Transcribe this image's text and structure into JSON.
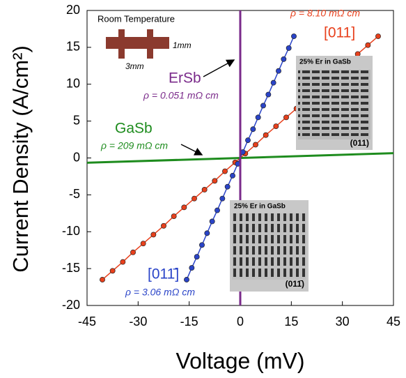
{
  "chart_data": {
    "type": "scatter",
    "x_label": "Voltage (mV)",
    "y_label": "Current Density (A/cm²)",
    "xlim": [
      -45,
      45
    ],
    "ylim": [
      -20,
      20
    ],
    "xticks": [
      -45,
      -30,
      -15,
      0,
      15,
      30,
      45
    ],
    "yticks": [
      -20,
      -15,
      -10,
      -5,
      0,
      5,
      10,
      15,
      20
    ],
    "series": [
      {
        "name": "[011]",
        "color": "#e8401c",
        "marker": true,
        "x": [
          -40.5,
          -37.5,
          -34.5,
          -31.5,
          -28.5,
          -25.5,
          -22.5,
          -19.5,
          -16.5,
          -13.5,
          -10.5,
          -7.5,
          -4.5,
          -1.5,
          1.5,
          4.5,
          7.5,
          10.5,
          13.5,
          16.5,
          19.5,
          22.5,
          25.5,
          28.5,
          31.5,
          34.5,
          37.5,
          40.5
        ],
        "values": [
          -16.5,
          -15.3,
          -14.1,
          -12.8,
          -11.6,
          -10.4,
          -9.2,
          -7.9,
          -6.7,
          -5.5,
          -4.3,
          -3.1,
          -1.8,
          -0.6,
          0.6,
          1.8,
          3.1,
          4.3,
          5.5,
          6.7,
          7.9,
          9.2,
          10.4,
          11.6,
          12.8,
          14.1,
          15.3,
          16.5
        ]
      },
      {
        "name": "[011̄]",
        "color": "#2a44c8",
        "marker": true,
        "x": [
          -15.75,
          -14.25,
          -12.75,
          -11.25,
          -9.75,
          -8.25,
          -6.75,
          -5.25,
          -3.75,
          -2.25,
          -0.75,
          0.75,
          2.25,
          3.75,
          5.25,
          6.75,
          8.25,
          9.75,
          11.25,
          12.75,
          14.25,
          15.75
        ],
        "values": [
          -16.5,
          -14.9,
          -13.4,
          -11.8,
          -10.2,
          -8.6,
          -7.1,
          -5.5,
          -3.9,
          -2.4,
          -0.8,
          0.8,
          2.4,
          3.9,
          5.5,
          7.1,
          8.6,
          10.2,
          11.8,
          13.4,
          14.9,
          16.5
        ]
      },
      {
        "name": "GaSb",
        "color": "#1e8c1e",
        "marker": false,
        "x": [
          -45,
          45
        ],
        "values": [
          -0.65,
          0.65
        ]
      },
      {
        "name": "ErSb",
        "color": "#7a2a8a",
        "marker": false,
        "x": [
          0,
          0
        ],
        "values": [
          -20,
          20
        ]
      }
    ],
    "annotations": {
      "room_temperature": "Room Temperature",
      "width": "1mm",
      "length": "3mm",
      "rho_011": "ρ = 8.10 mΩ cm",
      "rho_ersb": "ρ = 0.051 mΩ cm",
      "rho_gasb": "ρ = 209 mΩ cm",
      "rho_01bar1": "ρ = 3.06 mΩ cm"
    },
    "insets": [
      {
        "title": "25% Er in GaSb",
        "label": "(011)"
      },
      {
        "title": "25% Er in GaSb",
        "label": "(011̄)"
      }
    ]
  }
}
